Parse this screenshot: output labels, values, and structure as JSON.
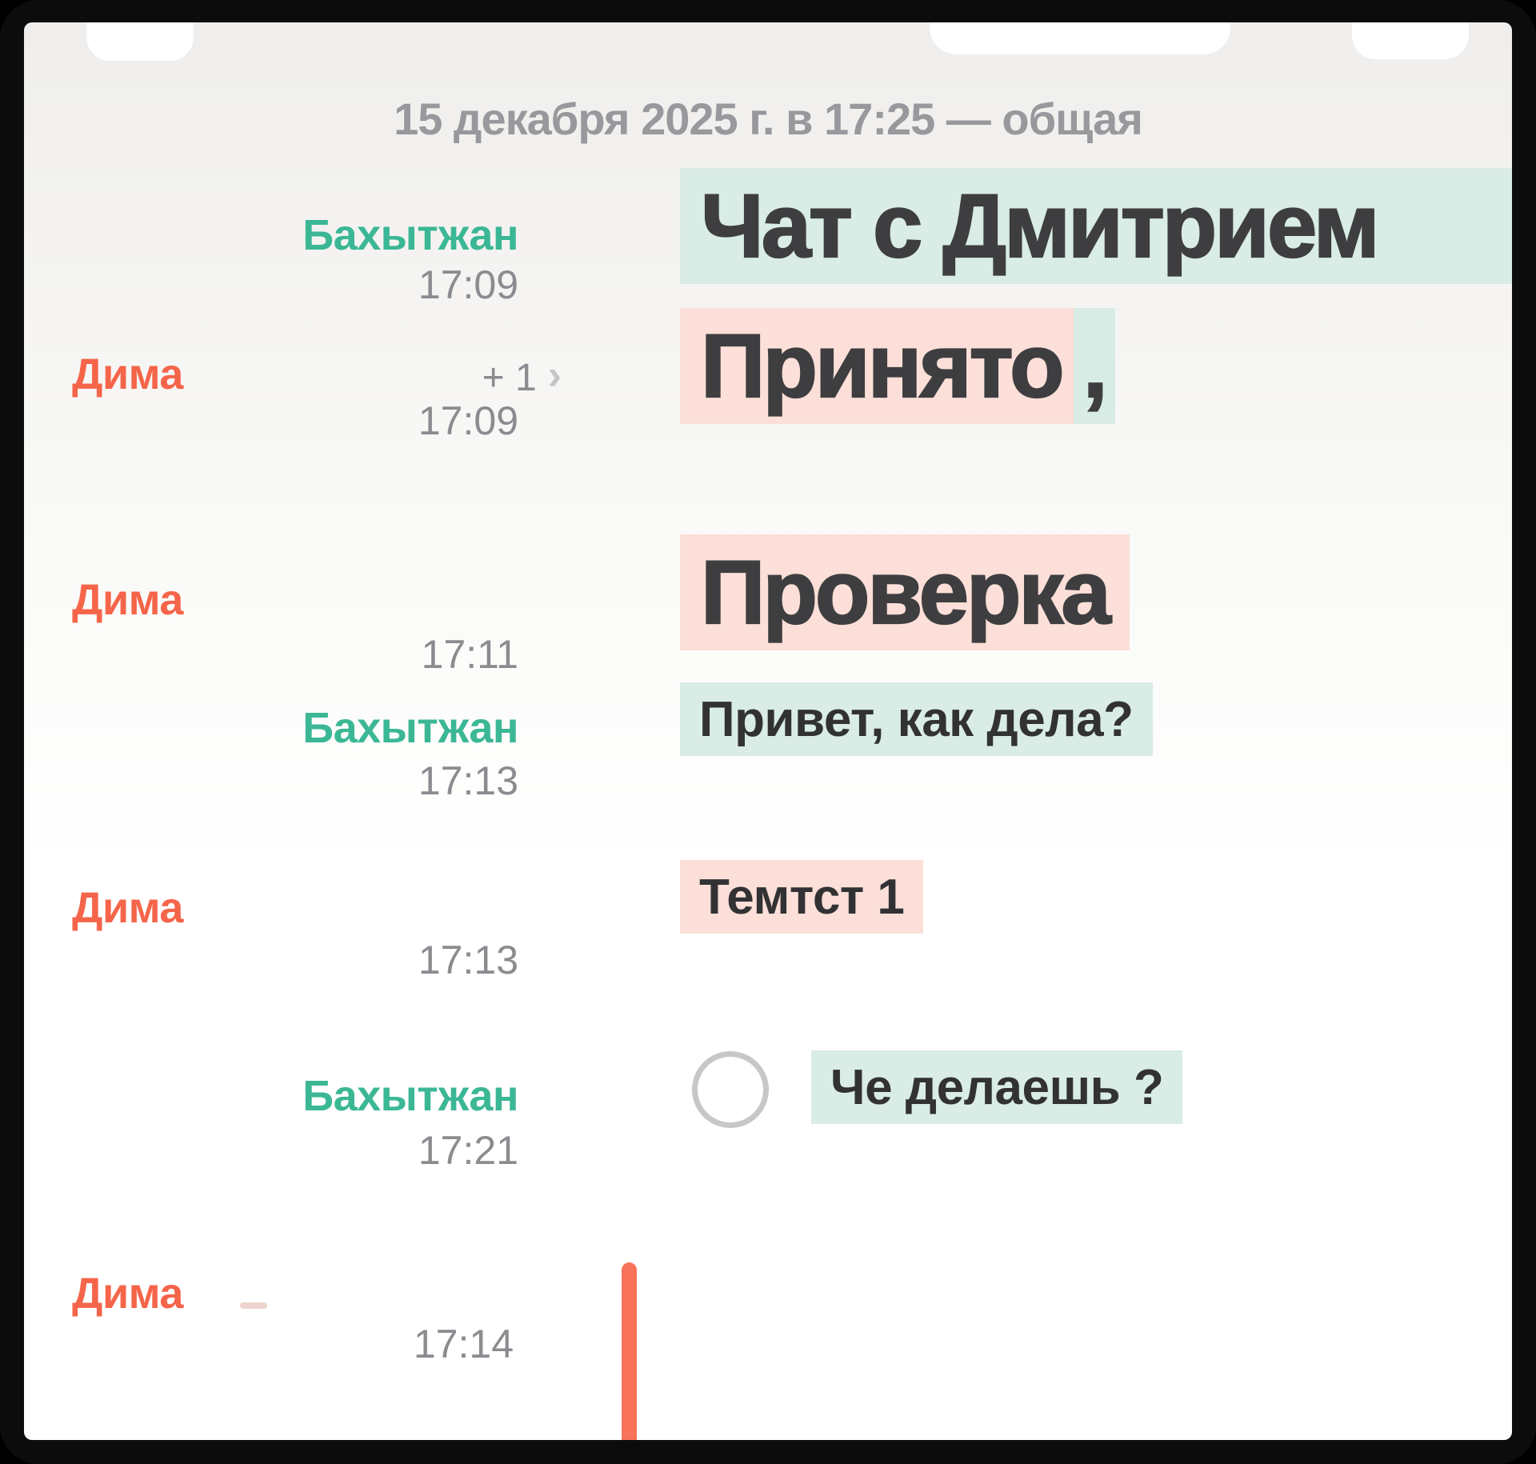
{
  "header": {
    "session_label": "15 декабря 2025 г. в 17:25 — общая"
  },
  "participants": {
    "remote": "Бахытжан",
    "local": "Дима"
  },
  "colors": {
    "remote_name": "#3bb795",
    "local_name": "#f5654a",
    "mint_highlight": "#d9ece5",
    "pink_highlight": "#fbdfd8",
    "timestamp": "#8b8b90",
    "large_text": "#3e3e40",
    "cursor_bar": "#f8735a"
  },
  "messages": [
    {
      "author": "Бахытжан",
      "time": "17:09",
      "text": "Чат с Дмитрием",
      "style": "large",
      "highlight": "mint"
    },
    {
      "author": "Дима",
      "badge": "+ 1",
      "chevron": "›",
      "time": "17:09",
      "text": "Принято",
      "trailing": ",",
      "style": "large",
      "highlight": "pink"
    },
    {
      "author": "Дима",
      "time": "17:11",
      "text": "Проверка",
      "style": "large",
      "highlight": "pink"
    },
    {
      "author": "Бахытжан",
      "time": "17:13",
      "text": "Привет, как дела?",
      "style": "regular",
      "highlight": "mint"
    },
    {
      "author": "Дима",
      "time": "17:13",
      "text": "Темтст 1",
      "style": "regular",
      "highlight": "pink"
    },
    {
      "author": "Бахытжан",
      "time": "17:21",
      "text": "Че делаешь ?",
      "style": "regular",
      "highlight": "mint",
      "marker": "radio-circle"
    },
    {
      "author": "Дима",
      "time": "17:14",
      "cursor": true
    }
  ]
}
